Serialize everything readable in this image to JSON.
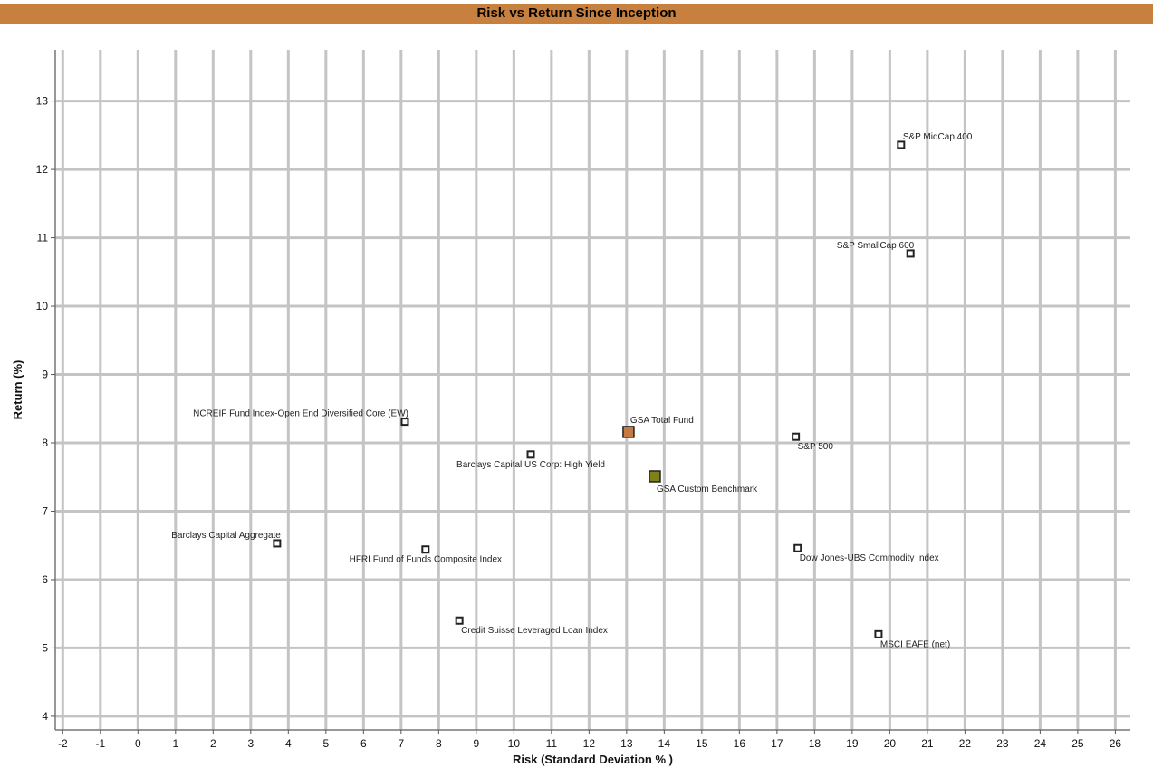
{
  "chart_data": {
    "type": "scatter",
    "title": "Risk vs Return Since Inception",
    "xlabel": "Risk (Standard Deviation % )",
    "ylabel": "Return (%)",
    "xlim": [
      -2.2,
      26.4
    ],
    "ylim": [
      3.8,
      13.75
    ],
    "xticks": [
      -2,
      -1,
      0,
      1,
      2,
      3,
      4,
      5,
      6,
      7,
      8,
      9,
      10,
      11,
      12,
      13,
      14,
      15,
      16,
      17,
      18,
      19,
      20,
      21,
      22,
      23,
      24,
      25,
      26
    ],
    "yticks": [
      4,
      5,
      6,
      7,
      8,
      9,
      10,
      11,
      12,
      13
    ],
    "grid": true,
    "points": [
      {
        "label": "S&P MidCap 400",
        "x": 20.3,
        "y": 12.36,
        "color": "#ffffff",
        "big": false,
        "label_pos": "above-right"
      },
      {
        "label": "S&P SmallCap 600",
        "x": 20.55,
        "y": 10.77,
        "color": "#ffffff",
        "big": false,
        "label_pos": "above-left"
      },
      {
        "label": "NCREIF Fund Index-Open End Diversified Core (EW)",
        "x": 7.1,
        "y": 8.31,
        "color": "#ffffff",
        "big": false,
        "label_pos": "above-left"
      },
      {
        "label": "GSA Total Fund",
        "x": 13.05,
        "y": 8.16,
        "color": "#c47a40",
        "big": true,
        "label_pos": "above-right"
      },
      {
        "label": "S&P 500",
        "x": 17.5,
        "y": 8.09,
        "color": "#ffffff",
        "big": false,
        "label_pos": "below-right"
      },
      {
        "label": "Barclays Capital US Corp: High Yield",
        "x": 10.45,
        "y": 7.83,
        "color": "#ffffff",
        "big": false,
        "label_pos": "below-center"
      },
      {
        "label": "GSA Custom Benchmark",
        "x": 13.75,
        "y": 7.51,
        "color": "#808018",
        "big": true,
        "label_pos": "below-right"
      },
      {
        "label": "Barclays Capital Aggregate",
        "x": 3.7,
        "y": 6.53,
        "color": "#ffffff",
        "big": false,
        "label_pos": "above-left"
      },
      {
        "label": "HFRI Fund of Funds Composite Index",
        "x": 7.65,
        "y": 6.44,
        "color": "#ffffff",
        "big": false,
        "label_pos": "below-center"
      },
      {
        "label": "Dow Jones-UBS Commodity Index",
        "x": 17.55,
        "y": 6.46,
        "color": "#ffffff",
        "big": false,
        "label_pos": "below-right"
      },
      {
        "label": "Credit Suisse Leveraged Loan Index",
        "x": 8.55,
        "y": 5.4,
        "color": "#ffffff",
        "big": false,
        "label_pos": "below-right"
      },
      {
        "label": "MSCI EAFE (net)",
        "x": 19.7,
        "y": 5.2,
        "color": "#ffffff",
        "big": false,
        "label_pos": "below-right"
      }
    ]
  }
}
